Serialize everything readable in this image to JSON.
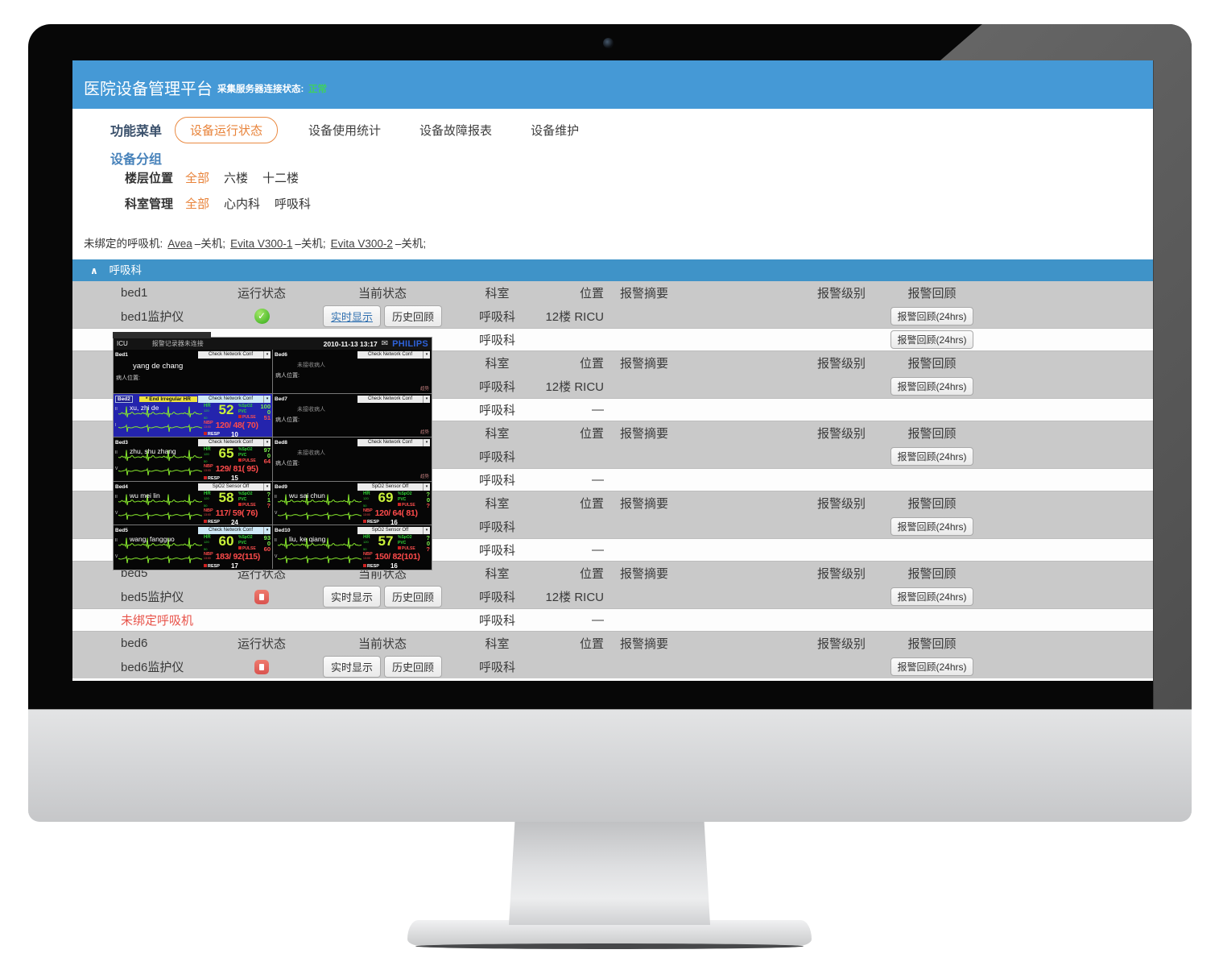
{
  "app": {
    "title": "医院设备管理平台",
    "server_status_label": "采集服务器连接状态:",
    "server_status_value": "正常",
    "colors": {
      "header_blue": "#4599d6",
      "section_blue": "#3f93c8",
      "accent_orange": "#e8833a",
      "status_green": "#3ecf63",
      "alert_red": "#e8534a",
      "link_blue": "#3070b0"
    }
  },
  "nav": {
    "menu_label": "功能菜单",
    "tabs": [
      {
        "label": "设备运行状态",
        "active": true
      },
      {
        "label": "设备使用统计",
        "active": false
      },
      {
        "label": "设备故障报表",
        "active": false
      },
      {
        "label": "设备维护",
        "active": false
      }
    ]
  },
  "filters": {
    "group_title": "设备分组",
    "rows": [
      {
        "label": "楼层位置",
        "options": [
          {
            "label": "全部",
            "selected": true
          },
          {
            "label": "六楼",
            "selected": false
          },
          {
            "label": "十二楼",
            "selected": false
          }
        ]
      },
      {
        "label": "科室管理",
        "options": [
          {
            "label": "全部",
            "selected": true
          },
          {
            "label": "心内科",
            "selected": false
          },
          {
            "label": "呼吸科",
            "selected": false
          }
        ]
      }
    ]
  },
  "unbound": {
    "prefix": "未绑定的呼吸机:",
    "items": [
      {
        "name": "Avea",
        "status": "–关机;"
      },
      {
        "name": "Evita V300-1",
        "status": "–关机;"
      },
      {
        "name": "Evita V300-2",
        "status": "–关机;"
      }
    ]
  },
  "section": {
    "title": "呼吸科",
    "collapse_glyph": "∧"
  },
  "icons": {
    "check": "✓",
    "collapse": "∧",
    "envelope": "✉",
    "dropdown_caret": "▾"
  },
  "table": {
    "header_labels": {
      "run": "运行状态",
      "current": "当前状态",
      "dept": "科室",
      "loc": "位置",
      "alarm_summary": "报警摘要",
      "alarm_level": "报警级别",
      "alarm_review": "报警回顾"
    },
    "buttons": {
      "realtime": "实时显示",
      "history": "历史回顾",
      "review24": "报警回顾(24hrs)"
    },
    "rows": [
      {
        "t": "h",
        "bg": "g",
        "name": "bed1"
      },
      {
        "t": "d",
        "bg": "g",
        "name": "bed1监护仪",
        "icon": "green",
        "btns": true,
        "rt_active": true,
        "dept": "呼吸科",
        "loc": "12楼 RICU",
        "rev": true
      },
      {
        "t": "d",
        "bg": "w",
        "name": "",
        "icon": "",
        "btns": false,
        "dept": "呼吸科",
        "loc": "",
        "rev": true
      },
      {
        "t": "h",
        "bg": "g",
        "name": ""
      },
      {
        "t": "d",
        "bg": "g",
        "name": "",
        "icon": "",
        "btns": false,
        "dept": "呼吸科",
        "loc": "12楼 RICU",
        "rev": true
      },
      {
        "t": "d",
        "bg": "w",
        "name": "",
        "icon": "",
        "btns": false,
        "dept": "呼吸科",
        "loc": "—",
        "rev": false
      },
      {
        "t": "h",
        "bg": "g",
        "name": ""
      },
      {
        "t": "d",
        "bg": "g",
        "name": "",
        "icon": "",
        "btns": false,
        "dept": "呼吸科",
        "loc": "",
        "rev": true
      },
      {
        "t": "d",
        "bg": "w",
        "name": "",
        "icon": "",
        "btns": false,
        "dept": "呼吸科",
        "loc": "—",
        "rev": false
      },
      {
        "t": "h",
        "bg": "g",
        "name": ""
      },
      {
        "t": "d",
        "bg": "g",
        "name": "",
        "icon": "",
        "btns": false,
        "dept": "呼吸科",
        "loc": "",
        "rev": true
      },
      {
        "t": "d",
        "bg": "w",
        "name": "",
        "icon": "",
        "btns": false,
        "dept": "呼吸科",
        "loc": "—",
        "rev": false
      },
      {
        "t": "h",
        "bg": "g",
        "name": "bed5"
      },
      {
        "t": "d",
        "bg": "g",
        "name": "bed5监护仪",
        "icon": "red",
        "btns": true,
        "dept": "呼吸科",
        "loc": "12楼 RICU",
        "rev": true
      },
      {
        "t": "d",
        "bg": "w",
        "name": "未绑定呼吸机",
        "red": true,
        "icon": "",
        "btns": false,
        "dept": "呼吸科",
        "loc": "—",
        "rev": false
      },
      {
        "t": "h",
        "bg": "g",
        "name": "bed6"
      },
      {
        "t": "d",
        "bg": "g",
        "name": "bed6监护仪",
        "icon": "red",
        "btns": true,
        "dept": "呼吸科",
        "loc": "",
        "rev": true
      }
    ]
  },
  "monitor_popup": {
    "titlebar": {
      "left": "ICU",
      "message": "报警记录器未连接",
      "datetime": "2010-11-13 13:17",
      "brand": "PHILIPS"
    },
    "labels": {
      "hr": "HR",
      "hr_hi": "120",
      "hr_lo": "50",
      "spo2": "%SpO2",
      "pvc": "PVC",
      "pulse": "PULSE",
      "nbp": "NBP",
      "nbp_time": "13:00",
      "resp": "RESP"
    },
    "beds": [
      {
        "id": "Bed1",
        "dropdown": "Check Network Conf",
        "dd_style": "white",
        "state": "named",
        "patient": "yang de chang",
        "loc_label": "病人位置:"
      },
      {
        "id": "Bed2",
        "dropdown": "Check Network Conf",
        "dd_style": "blue",
        "state": "vitals",
        "bg": "blue",
        "alert": "* End Irregular HR",
        "patient": "xu, zhi de",
        "leads": [
          "II",
          "I"
        ],
        "hr": "52",
        "spo2": "100",
        "pvc": "0",
        "pulse": "51",
        "nbp": "120/ 48( 70)",
        "resp": "10"
      },
      {
        "id": "Bed3",
        "dropdown": "Check Network Conf",
        "dd_style": "white",
        "state": "vitals",
        "patient": "zhu, shu zhang",
        "leads": [
          "II",
          "V"
        ],
        "hr": "65",
        "spo2": "97",
        "pvc": "0",
        "pulse": "64",
        "nbp": "129/ 81( 95)",
        "resp": "15"
      },
      {
        "id": "Bed4",
        "dropdown": "SpO2   Sensor Off",
        "dd_style": "white",
        "state": "vitals",
        "patient": "wu mei lin",
        "leads": [
          "II",
          "V"
        ],
        "hr": "58",
        "spo2": "?",
        "pvc": "1",
        "pulse": "?",
        "nbp": "117/ 59( 76)",
        "resp": "24"
      },
      {
        "id": "Bed5",
        "dropdown": "Check Network Conf",
        "dd_style": "blue",
        "state": "vitals",
        "patient": "wang, fangguo",
        "leads": [
          "II",
          "V"
        ],
        "hr": "60",
        "spo2": "93",
        "pvc": "0",
        "pulse": "60",
        "nbp": "183/ 92(115)",
        "resp": "17"
      },
      {
        "id": "Bed6",
        "dropdown": "Check Network Conf",
        "dd_style": "white",
        "state": "empty",
        "empty_text": "未接收病人",
        "loc_label": "病人位置:",
        "corner": "趋势"
      },
      {
        "id": "Bed7",
        "dropdown": "Check Network Conf",
        "dd_style": "white",
        "state": "empty",
        "empty_text": "未接收病人",
        "loc_label": "病人位置:",
        "corner": "趋势"
      },
      {
        "id": "Bed8",
        "dropdown": "Check Network Conf",
        "dd_style": "white",
        "state": "empty",
        "empty_text": "未接收病人",
        "loc_label": "病人位置:",
        "corner": "趋势"
      },
      {
        "id": "Bed9",
        "dropdown": "SpO2   Sensor Off",
        "dd_style": "white",
        "state": "vitals",
        "patient": "wu sai chun",
        "leads": [
          "II",
          "V"
        ],
        "hr": "69",
        "spo2": "?",
        "pvc": "0",
        "pulse": "?",
        "nbp": "120/ 64( 81)",
        "resp": "16"
      },
      {
        "id": "Bed10",
        "dropdown": "SpO2   Sensor Off",
        "dd_style": "white",
        "state": "vitals",
        "patient": "liu, ke qiang",
        "leads": [
          "II",
          "V"
        ],
        "hr": "57",
        "spo2": "?",
        "pvc": "0",
        "pulse": "?",
        "nbp": "150/ 82(101)",
        "resp": "16"
      }
    ]
  }
}
